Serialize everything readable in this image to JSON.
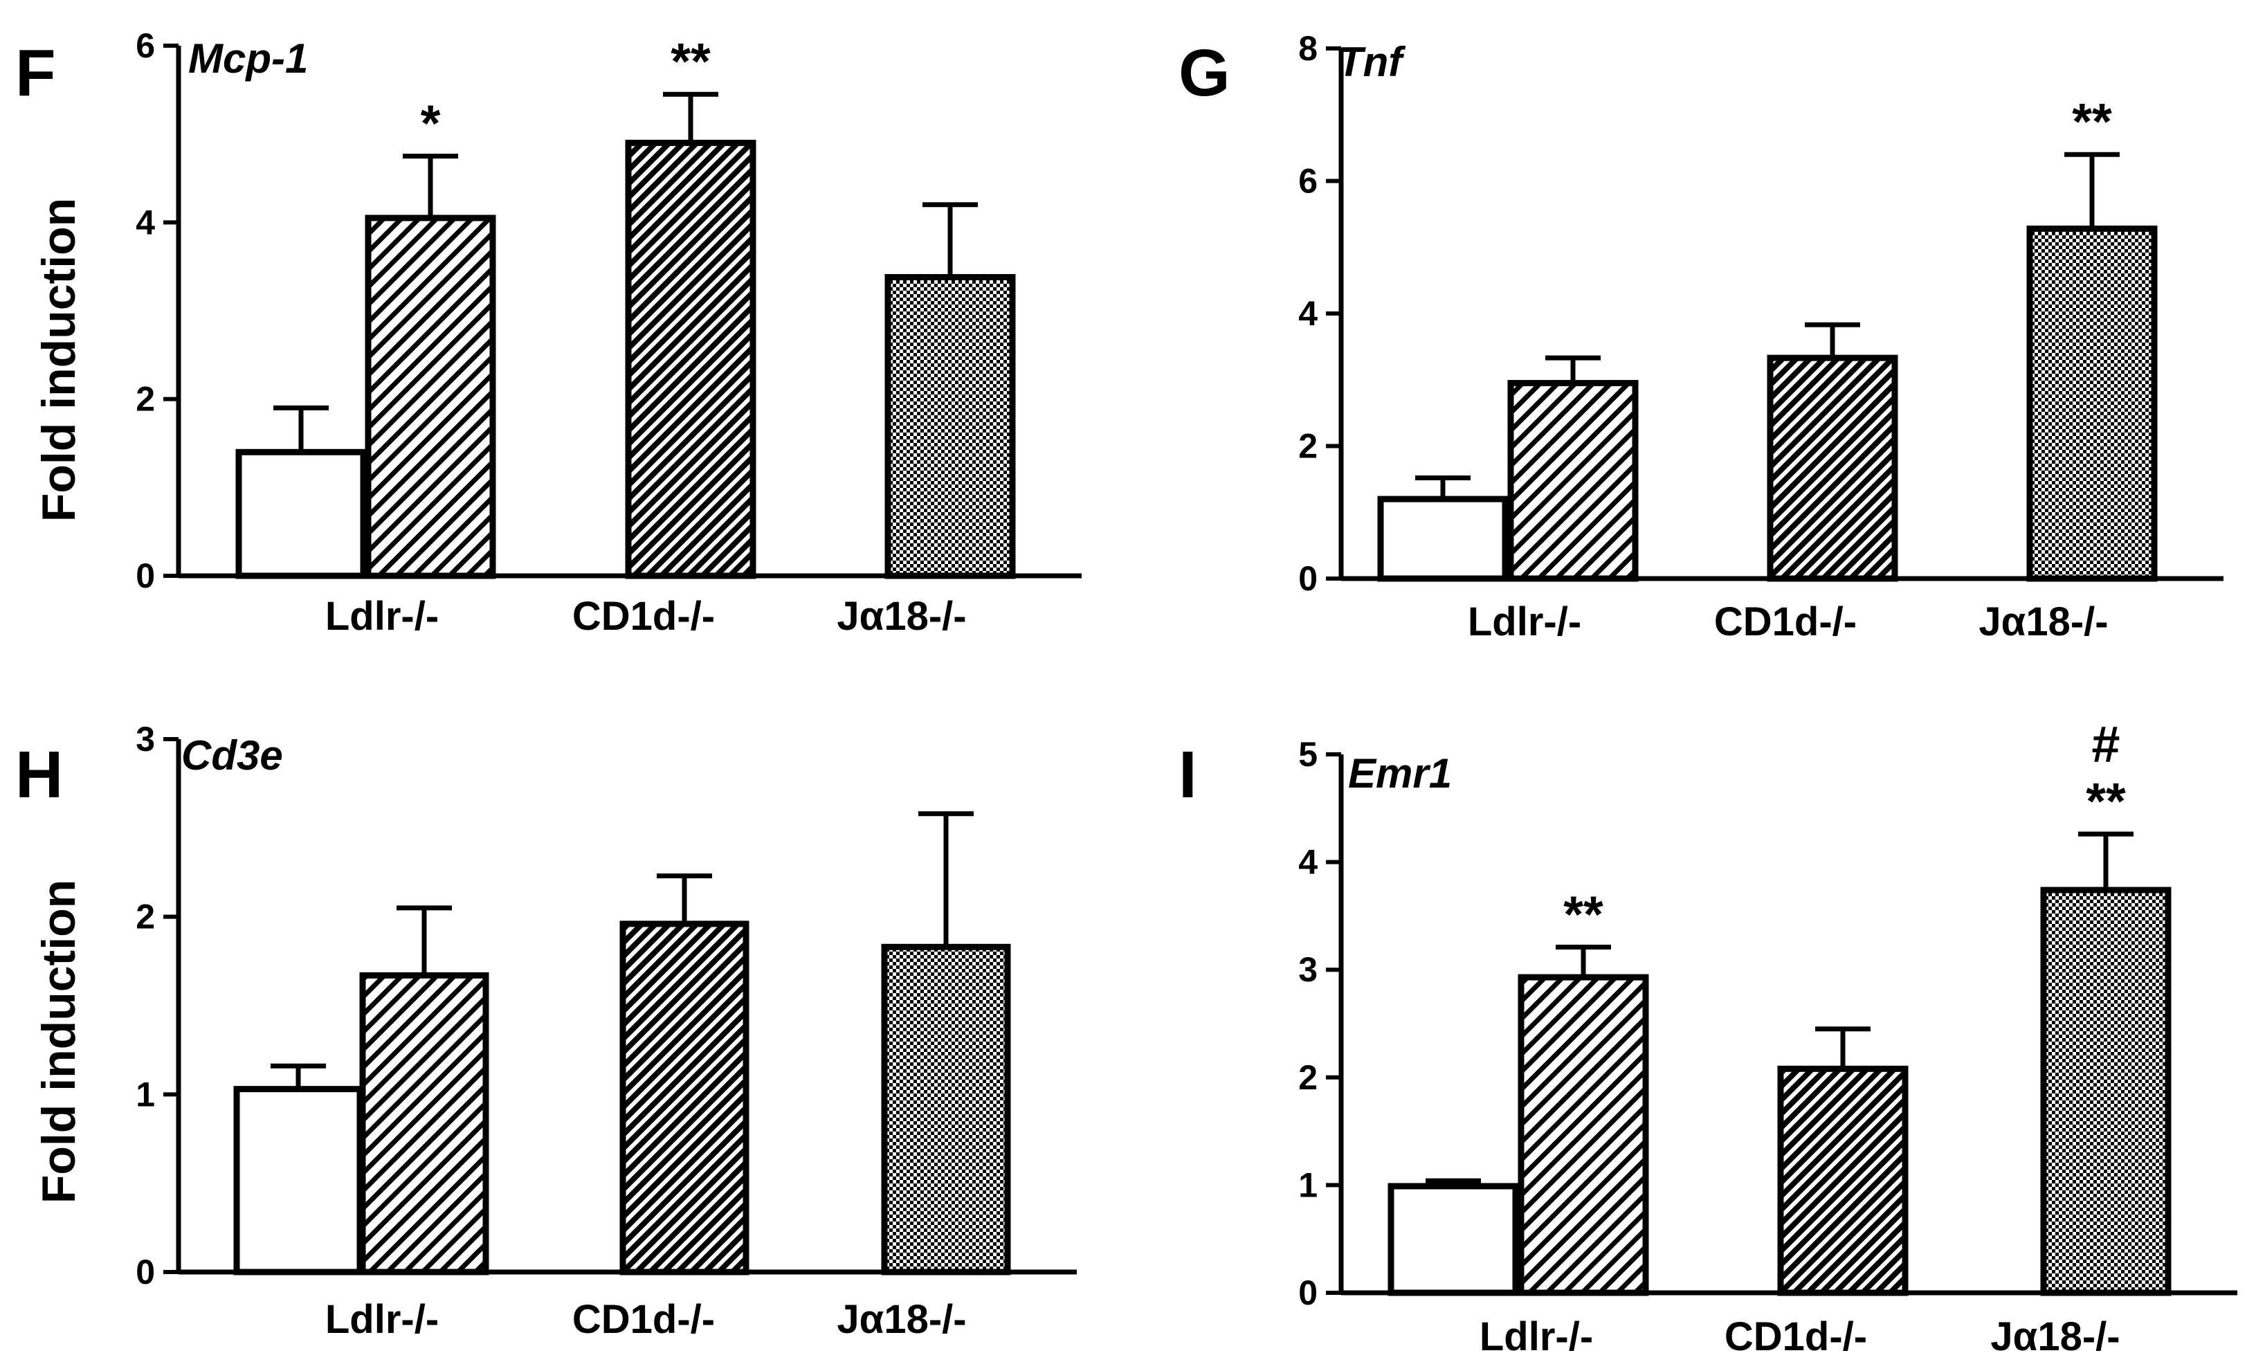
{
  "colors": {
    "ink": "#000000",
    "solid_fill": "#7d7d7d",
    "open_fill": "#ffffff"
  },
  "chart_data": [
    {
      "panel": "F",
      "title": "Mcp-1",
      "type": "bar",
      "ylabel": "Fold induction",
      "ylim": [
        0,
        6
      ],
      "yticks": [
        "0",
        "2",
        "4",
        "6"
      ],
      "group_labels": [
        "Ldlr-/-",
        "CD1d-/-",
        "Jα18-/-"
      ],
      "bars": [
        {
          "value": 1.4,
          "error": 0.5,
          "fill": "open",
          "sig": ""
        },
        {
          "value": 4.05,
          "error": 0.7,
          "fill": "hatch",
          "sig": "*"
        },
        {
          "value": 4.9,
          "error": 0.55,
          "fill": "dense-hatch",
          "sig": "**"
        },
        {
          "value": 3.38,
          "error": 0.82,
          "fill": "checker",
          "sig": ""
        }
      ]
    },
    {
      "panel": "G",
      "title": "Tnf",
      "type": "bar",
      "ylabel": "",
      "ylim": [
        0,
        8
      ],
      "yticks": [
        "0",
        "2",
        "4",
        "6",
        "8"
      ],
      "group_labels": [
        "Ldlr-/-",
        "CD1d-/-",
        "Jα18-/-"
      ],
      "bars": [
        {
          "value": 1.2,
          "error": 0.32,
          "fill": "open",
          "sig": ""
        },
        {
          "value": 2.95,
          "error": 0.38,
          "fill": "hatch",
          "sig": ""
        },
        {
          "value": 3.33,
          "error": 0.5,
          "fill": "dense-hatch",
          "sig": ""
        },
        {
          "value": 5.28,
          "error": 1.12,
          "fill": "checker",
          "sig": "**"
        }
      ]
    },
    {
      "panel": "H",
      "title": "Cd3e",
      "type": "bar",
      "ylabel": "Fold induction",
      "ylim": [
        0,
        3
      ],
      "yticks": [
        "0",
        "1",
        "2",
        "3"
      ],
      "group_labels": [
        "Ldlr-/-",
        "CD1d-/-",
        "Jα18-/-"
      ],
      "bars": [
        {
          "value": 1.03,
          "error": 0.13,
          "fill": "open",
          "sig": ""
        },
        {
          "value": 1.67,
          "error": 0.38,
          "fill": "hatch",
          "sig": ""
        },
        {
          "value": 1.96,
          "error": 0.27,
          "fill": "dense-hatch",
          "sig": ""
        },
        {
          "value": 1.83,
          "error": 0.75,
          "fill": "checker",
          "sig": ""
        }
      ]
    },
    {
      "panel": "I",
      "title": "Emr1",
      "type": "bar",
      "ylabel": "",
      "ylim": [
        0,
        5
      ],
      "yticks": [
        "0",
        "1",
        "2",
        "3",
        "4",
        "5"
      ],
      "group_labels": [
        "Ldlr-/-",
        "CD1d-/-",
        "Jα18-/-"
      ],
      "bars": [
        {
          "value": 0.99,
          "error": 0.05,
          "fill": "open",
          "sig": ""
        },
        {
          "value": 2.93,
          "error": 0.28,
          "fill": "hatch",
          "sig": "**"
        },
        {
          "value": 2.08,
          "error": 0.37,
          "fill": "dense-hatch",
          "sig": ""
        },
        {
          "value": 3.74,
          "error": 0.52,
          "fill": "checker",
          "sig": "**",
          "sig2": "#"
        }
      ]
    }
  ]
}
